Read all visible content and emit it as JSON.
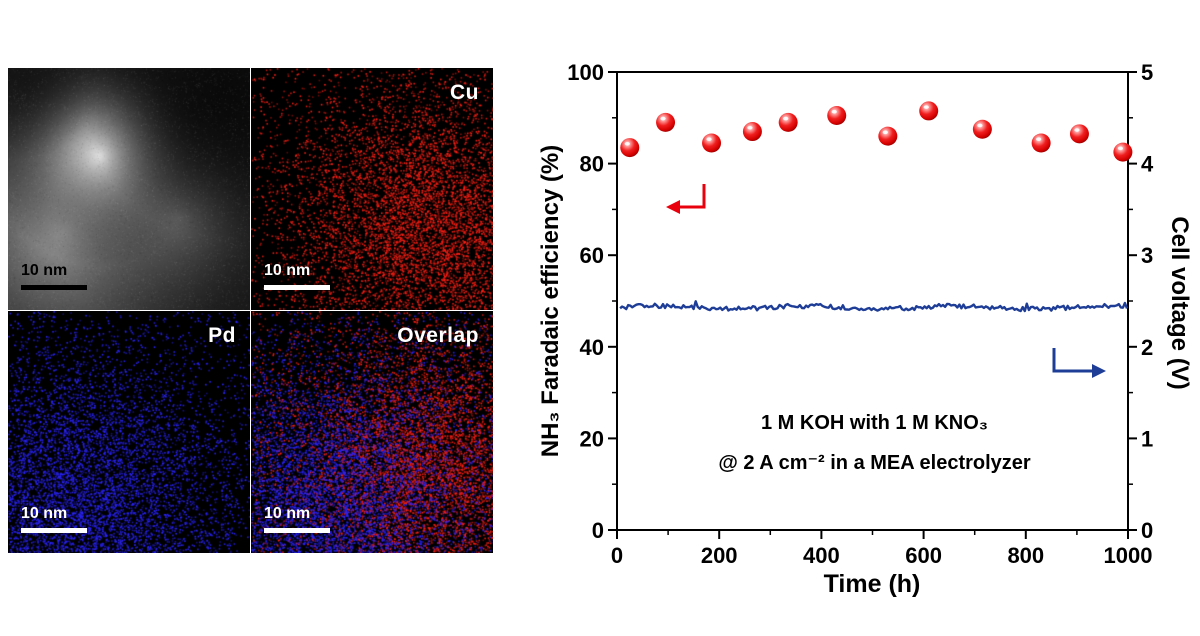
{
  "micrographs": {
    "panels": [
      {
        "id": "haadf",
        "label": "",
        "scale_label": "10 nm"
      },
      {
        "id": "cu-map",
        "label": "Cu",
        "scale_label": "10 nm"
      },
      {
        "id": "pd-map",
        "label": "Pd",
        "scale_label": "10 nm"
      },
      {
        "id": "overlap-map",
        "label": "Overlap",
        "scale_label": "10 nm"
      }
    ],
    "cu_color": "#ff2015",
    "pd_color": "#2b24ff"
  },
  "chart_data": {
    "type": "scatter+line",
    "xlabel": "Time (h)",
    "ylabel_left": "NH₃ Faradaic efficiency (%)",
    "ylabel_right": "Cell voltage (V)",
    "xlim": [
      0,
      1000
    ],
    "ylim_left": [
      0,
      100
    ],
    "ylim_right": [
      0,
      5
    ],
    "x_ticks": [
      0,
      200,
      400,
      600,
      800,
      1000
    ],
    "x_minor_step": 100,
    "left_ticks": [
      0,
      20,
      40,
      60,
      80,
      100
    ],
    "left_minor_step": 10,
    "right_ticks": [
      0,
      1,
      2,
      3,
      4,
      5
    ],
    "right_minor_step": 0.5,
    "series": [
      {
        "name": "NH₃ Faradaic efficiency",
        "axis": "left",
        "type": "scatter",
        "marker": "sphere",
        "color": "#e8000d",
        "x": [
          25,
          95,
          185,
          265,
          335,
          430,
          530,
          610,
          715,
          830,
          905,
          990
        ],
        "y": [
          83.5,
          89,
          84.5,
          87,
          89,
          90.5,
          86,
          91.5,
          87.5,
          84.5,
          86.5,
          82.5
        ]
      },
      {
        "name": "Cell voltage",
        "axis": "right",
        "type": "line",
        "color": "#1e3d96",
        "mean": 2.43,
        "range": [
          2.35,
          2.5
        ]
      }
    ],
    "annotations": [
      "1 M KOH with 1 M KNO₃",
      "@ 2 A cm⁻²  in a MEA electrolyzer"
    ]
  }
}
